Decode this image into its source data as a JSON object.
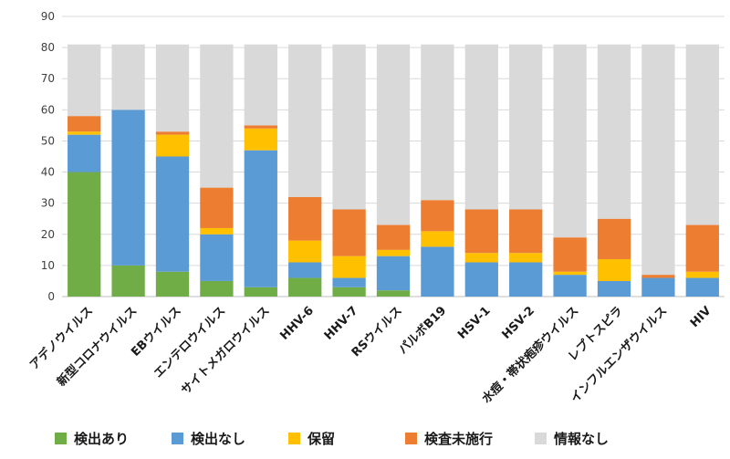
{
  "chart_data": {
    "type": "bar",
    "stacked": true,
    "ylim": [
      0,
      90
    ],
    "yticks": [
      0,
      10,
      20,
      30,
      40,
      50,
      60,
      70,
      80,
      90
    ],
    "grid": true,
    "legend_position": "bottom",
    "categories": [
      "アデノウイルス",
      "新型コロナウイルス",
      "EBウイルス",
      "エンテロウイルス",
      "サイトメガロウイルス",
      "HHV-6",
      "HHV-7",
      "RSウイルス",
      "パルボB19",
      "HSV-1",
      "HSV-2",
      "水痘・帯状疱疹ウイルス",
      "レプトスピラ",
      "インフルエンザウイルス",
      "HIV"
    ],
    "series": [
      {
        "name": "検出あり",
        "color": "#70ad47",
        "values": [
          40,
          10,
          8,
          5,
          3,
          6,
          3,
          2,
          0,
          0,
          0,
          0,
          0,
          0,
          0
        ]
      },
      {
        "name": "検出なし",
        "color": "#5b9bd5",
        "values": [
          12,
          50,
          37,
          15,
          44,
          5,
          3,
          11,
          16,
          11,
          11,
          7,
          5,
          6,
          6
        ]
      },
      {
        "name": "保留",
        "color": "#ffc000",
        "values": [
          1,
          0,
          7,
          2,
          7,
          7,
          7,
          2,
          5,
          3,
          3,
          1,
          7,
          0,
          2
        ]
      },
      {
        "name": "検査未施行",
        "color": "#ed7d31",
        "values": [
          5,
          0,
          1,
          13,
          1,
          14,
          15,
          8,
          10,
          14,
          14,
          11,
          13,
          1,
          15
        ]
      },
      {
        "name": "情報なし",
        "color": "#d9d9d9",
        "values": [
          23,
          21,
          28,
          46,
          26,
          49,
          53,
          58,
          50,
          53,
          53,
          62,
          56,
          74,
          58
        ]
      }
    ]
  }
}
